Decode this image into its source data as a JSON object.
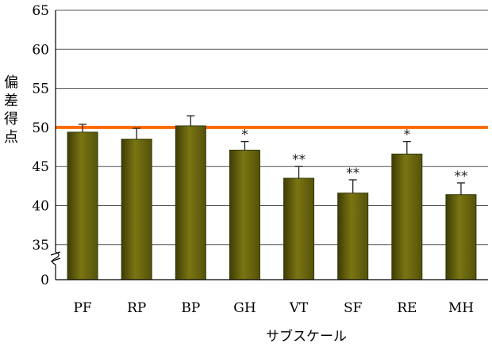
{
  "chart_data": {
    "type": "bar",
    "categories": [
      "PF",
      "RP",
      "BP",
      "GH",
      "VT",
      "SF",
      "RE",
      "MH"
    ],
    "values": [
      49.4,
      48.5,
      50.2,
      47.1,
      43.5,
      41.6,
      46.6,
      41.4
    ],
    "errors": [
      1.0,
      1.4,
      1.3,
      1.1,
      1.5,
      1.7,
      1.6,
      1.5
    ],
    "significance": [
      "",
      "",
      "",
      "*",
      "**",
      "**",
      "*",
      "**"
    ],
    "reference_line": 50,
    "reference_color": "#ff6a00",
    "bar_color": "#6e6a0e",
    "xlabel": "サブスケール",
    "ylabel": "偏差得点",
    "ylim": [
      30,
      65
    ],
    "y_ticks": [
      65,
      60,
      55,
      50,
      45,
      40,
      35
    ],
    "axis_break_label": "0",
    "grid": true
  }
}
